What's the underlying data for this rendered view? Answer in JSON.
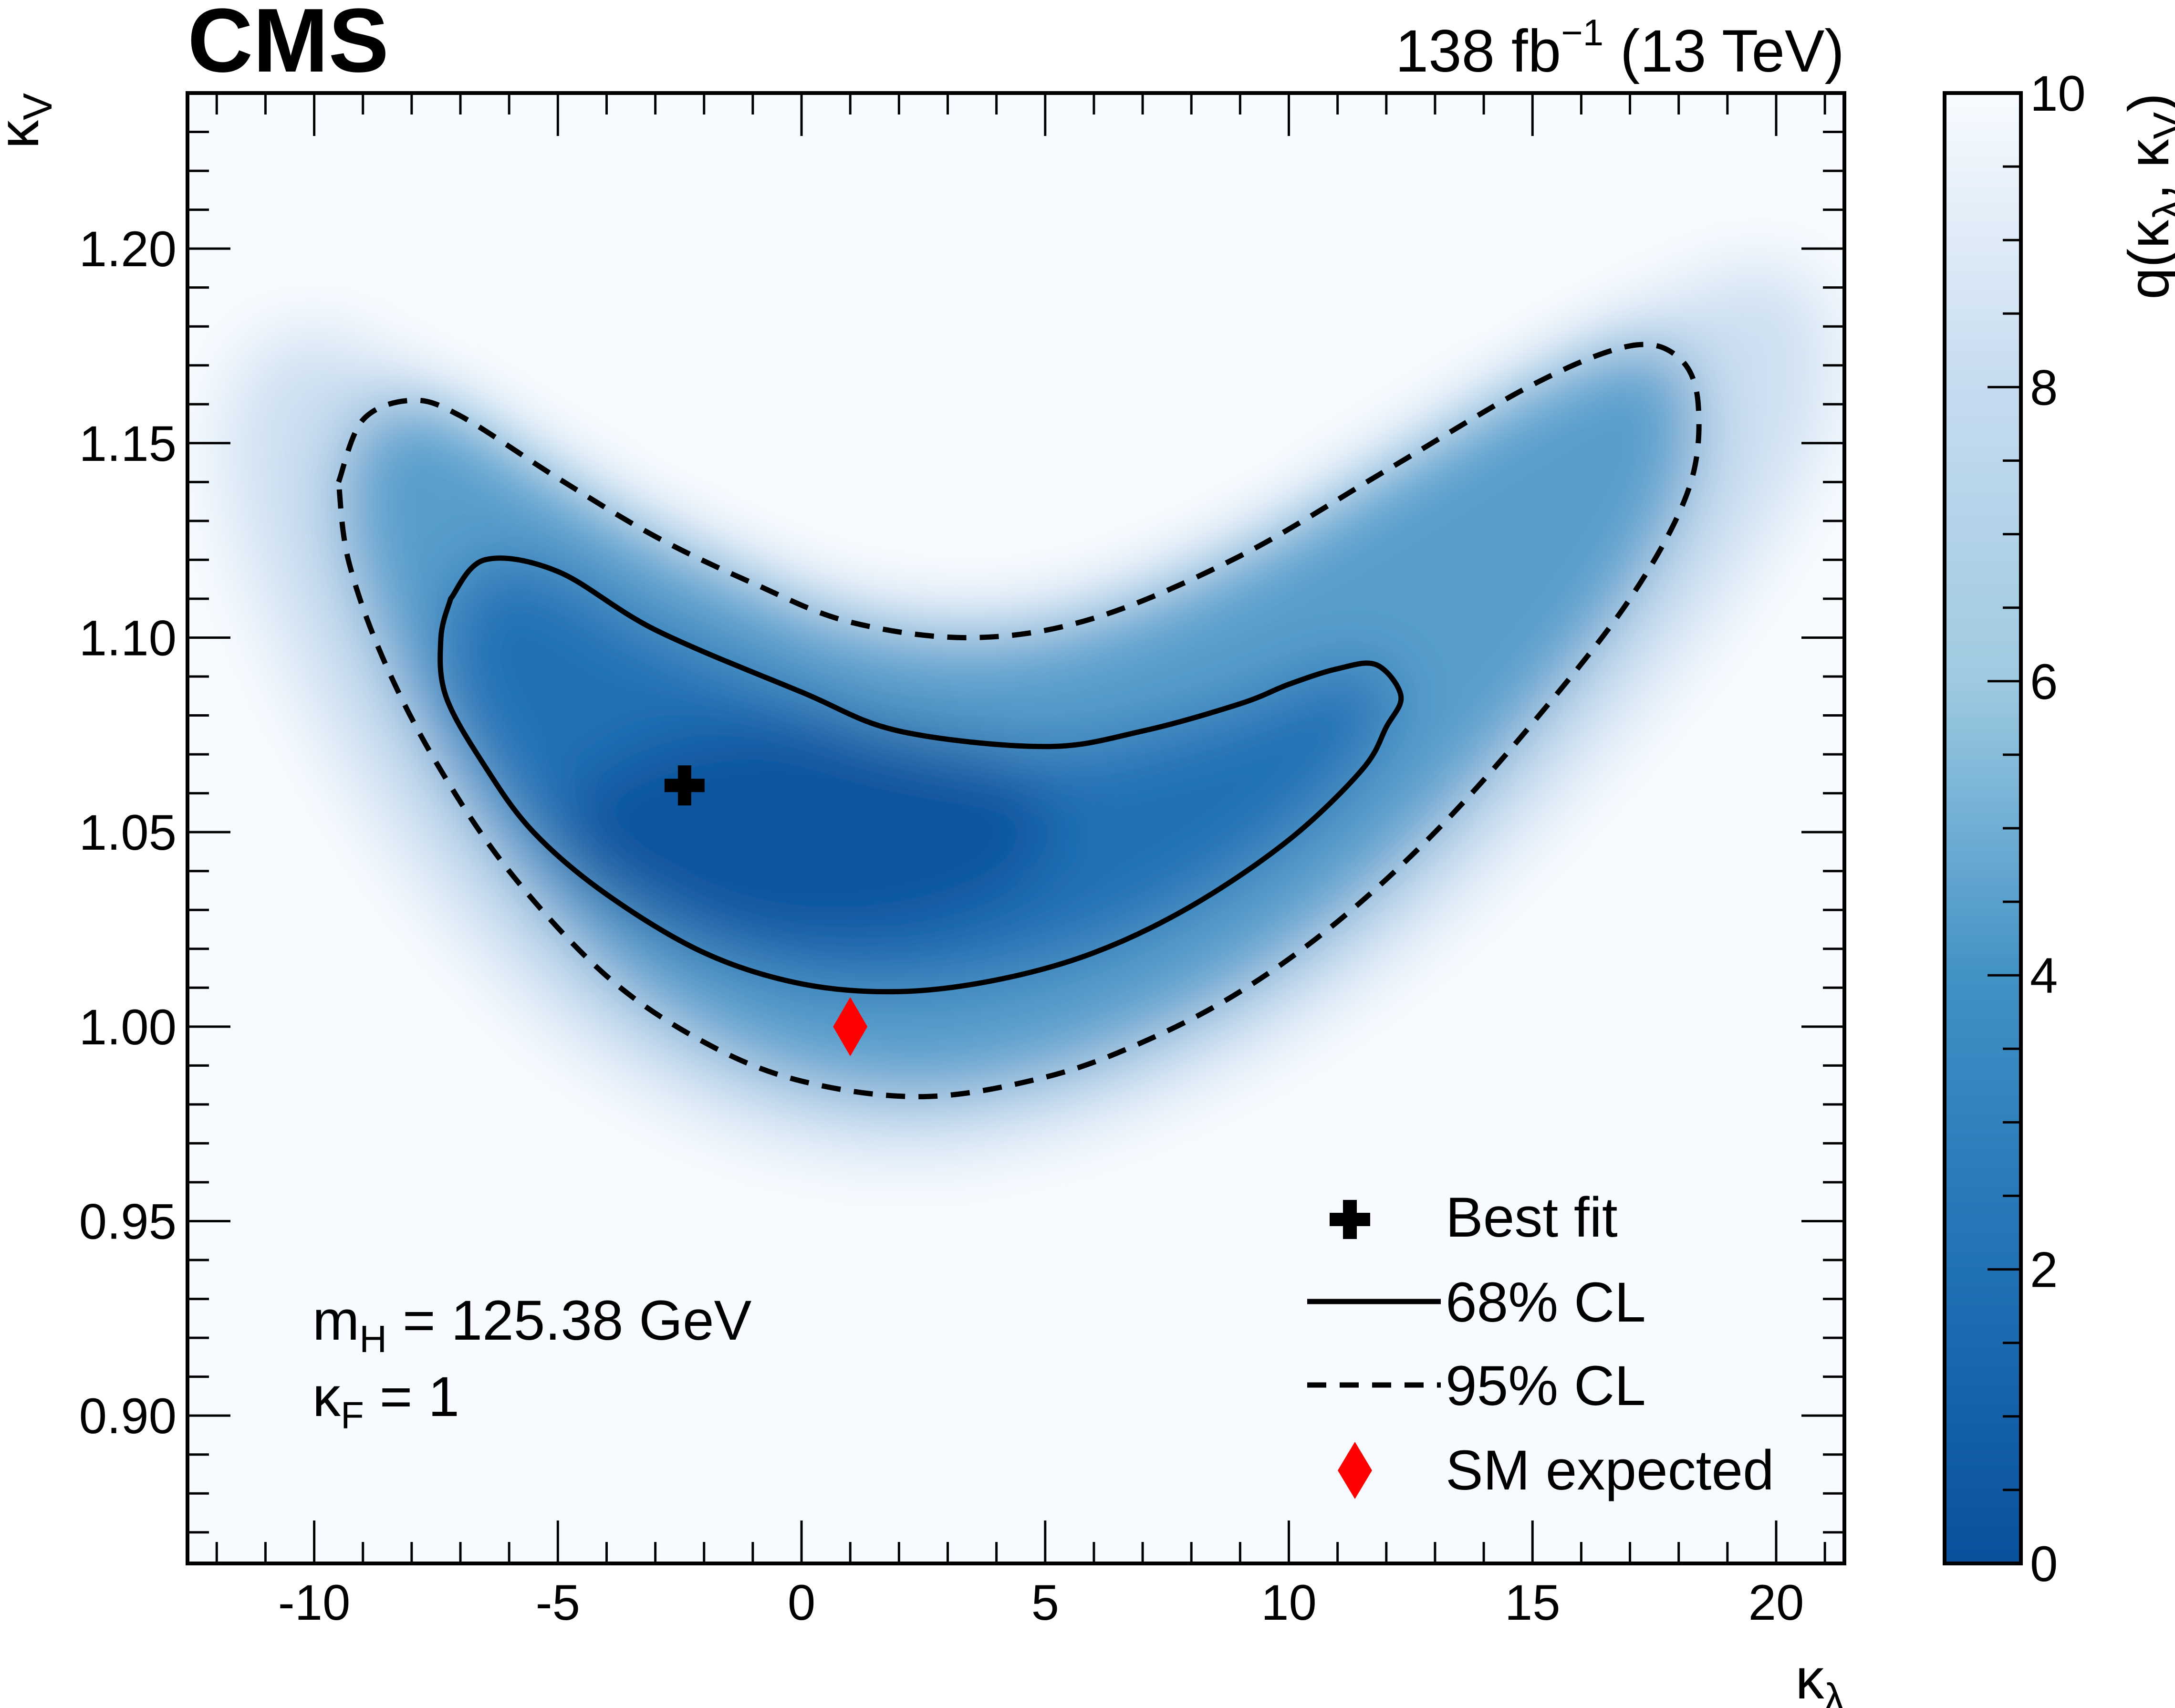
{
  "experiment": "CMS",
  "lumi_label": {
    "value": "138 fb",
    "exponent": "−1",
    "energy": " (13 TeV)"
  },
  "colors": {
    "low": "#08519c",
    "mid": "#4a98c9",
    "high": "#f7fbff",
    "best_fit": "#000000",
    "sm": "#ff0000"
  },
  "chart_data": {
    "type": "heatmap",
    "title": "",
    "xlabel": {
      "symbol": "κ",
      "sub": "λ"
    },
    "ylabel": {
      "symbol": "κ",
      "sub": "V"
    },
    "xlim": [
      -12.6,
      21.4
    ],
    "ylim": [
      0.862,
      1.24
    ],
    "x_ticks": [
      -10,
      -5,
      0,
      5,
      10,
      15,
      20
    ],
    "x_tick_labels": [
      "-10",
      "-5",
      "0",
      "5",
      "10",
      "15",
      "20"
    ],
    "y_ticks": [
      0.9,
      0.95,
      1.0,
      1.05,
      1.1,
      1.15,
      1.2
    ],
    "y_tick_labels": [
      "0.90",
      "0.95",
      "1.00",
      "1.05",
      "1.10",
      "1.15",
      "1.20"
    ],
    "colorbar": {
      "label": {
        "prefix": "q(",
        "k1": "κ",
        "s1": "λ",
        "sep": ", ",
        "k2": "κ",
        "s2": "V",
        "suffix": ")"
      },
      "range": [
        0,
        10
      ],
      "ticks": [
        0,
        2,
        4,
        6,
        8,
        10
      ],
      "tick_labels": [
        "0",
        "2",
        "4",
        "6",
        "8",
        "10"
      ]
    },
    "best_fit": {
      "x": -2.4,
      "y": 1.062
    },
    "sm_expected": {
      "x": 1.0,
      "y": 1.0
    },
    "contour_68": [
      [
        -7.2,
        1.11
      ],
      [
        -6.5,
        1.12
      ],
      [
        -5.0,
        1.117
      ],
      [
        -3.0,
        1.102
      ],
      [
        0.0,
        1.086
      ],
      [
        2.0,
        1.076
      ],
      [
        5.0,
        1.072
      ],
      [
        7.0,
        1.076
      ],
      [
        9.0,
        1.083
      ],
      [
        10.0,
        1.088
      ],
      [
        11.0,
        1.092
      ],
      [
        11.8,
        1.093
      ],
      [
        12.3,
        1.085
      ],
      [
        12.0,
        1.077
      ],
      [
        11.5,
        1.066
      ],
      [
        10.0,
        1.048
      ],
      [
        8.0,
        1.031
      ],
      [
        6.0,
        1.019
      ],
      [
        4.0,
        1.012
      ],
      [
        2.0,
        1.009
      ],
      [
        0.0,
        1.011
      ],
      [
        -2.0,
        1.019
      ],
      [
        -4.0,
        1.034
      ],
      [
        -5.5,
        1.05
      ],
      [
        -6.5,
        1.067
      ],
      [
        -7.3,
        1.085
      ],
      [
        -7.4,
        1.1
      ],
      [
        -7.2,
        1.11
      ]
    ],
    "contour_95": [
      [
        -9.5,
        1.14
      ],
      [
        -9.0,
        1.156
      ],
      [
        -8.0,
        1.161
      ],
      [
        -7.0,
        1.157
      ],
      [
        -5.0,
        1.141
      ],
      [
        -3.0,
        1.126
      ],
      [
        -1.0,
        1.114
      ],
      [
        1.0,
        1.104
      ],
      [
        3.5,
        1.1
      ],
      [
        6.0,
        1.105
      ],
      [
        9.0,
        1.121
      ],
      [
        12.0,
        1.143
      ],
      [
        15.0,
        1.165
      ],
      [
        17.0,
        1.175
      ],
      [
        18.0,
        1.172
      ],
      [
        18.4,
        1.16
      ],
      [
        18.2,
        1.138
      ],
      [
        17.0,
        1.11
      ],
      [
        15.0,
        1.078
      ],
      [
        13.0,
        1.05
      ],
      [
        11.0,
        1.027
      ],
      [
        9.0,
        1.009
      ],
      [
        7.0,
        0.996
      ],
      [
        5.0,
        0.987
      ],
      [
        2.5,
        0.982
      ],
      [
        0.0,
        0.986
      ],
      [
        -2.0,
        0.996
      ],
      [
        -4.0,
        1.013
      ],
      [
        -6.0,
        1.04
      ],
      [
        -7.5,
        1.068
      ],
      [
        -8.6,
        1.095
      ],
      [
        -9.3,
        1.12
      ],
      [
        -9.5,
        1.14
      ]
    ]
  },
  "legend": [
    {
      "kind": "marker-plus",
      "label": "Best fit"
    },
    {
      "kind": "line-solid",
      "label": "68% CL"
    },
    {
      "kind": "line-dashed",
      "label": "95% CL"
    },
    {
      "kind": "marker-diamond",
      "label": "SM expected"
    }
  ],
  "annotations": {
    "mass": {
      "m": "m",
      "sub": "H",
      "rest": " = 125.38 GeV"
    },
    "kappa_f": {
      "k": "κ",
      "sub": "F",
      "rest": " = 1"
    }
  }
}
